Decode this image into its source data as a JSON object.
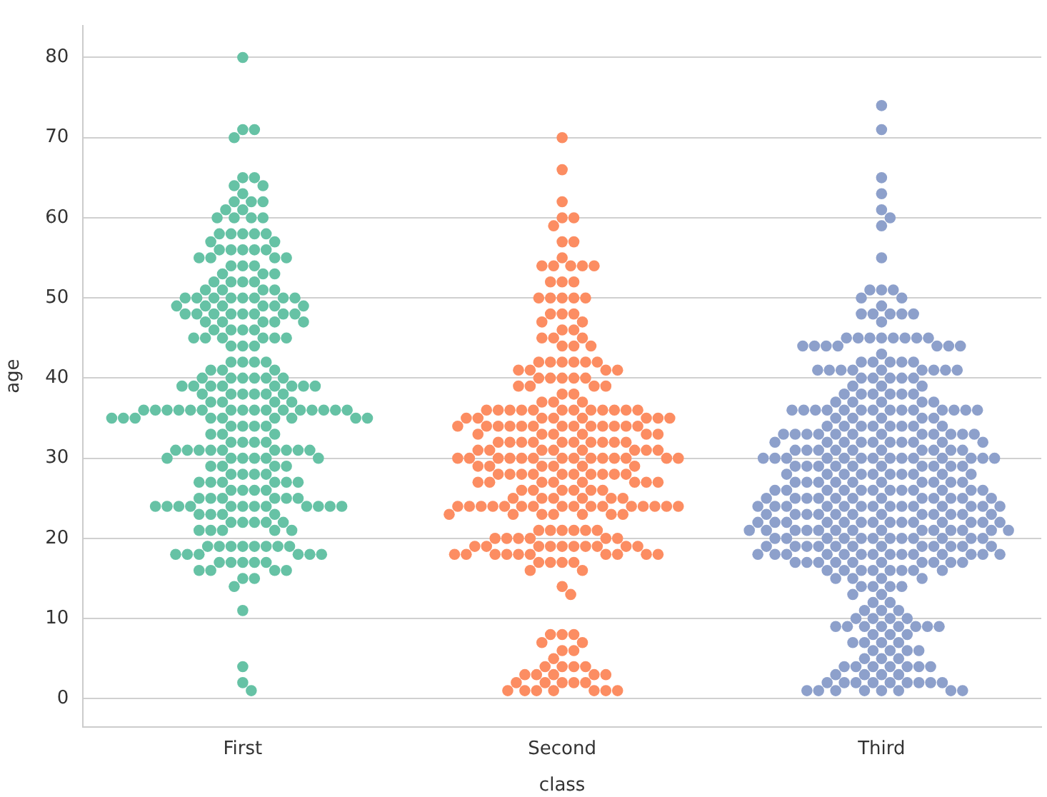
{
  "chart_data": {
    "type": "scatter",
    "xlabel": "class",
    "ylabel": "age",
    "categories": [
      "First",
      "Second",
      "Third"
    ],
    "ylim": [
      -3.5,
      84
    ],
    "yticks": [
      0,
      10,
      20,
      30,
      40,
      50,
      60,
      70,
      80
    ],
    "grid": "y",
    "legend": false,
    "marker": "circle",
    "series": [
      {
        "color": "#66c2a5",
        "x": [
          "First",
          "First",
          "First",
          "First",
          "First",
          "First",
          "First",
          "First",
          "First",
          "First",
          "First",
          "First",
          "First",
          "First",
          "First",
          "First",
          "First",
          "First",
          "First",
          "First",
          "First",
          "First",
          "First",
          "First",
          "First",
          "First",
          "First",
          "First",
          "First",
          "First",
          "First",
          "First",
          "First",
          "First",
          "First",
          "First",
          "First",
          "First",
          "First",
          "First",
          "First",
          "First",
          "First",
          "First",
          "First",
          "First",
          "First",
          "First",
          "First",
          "First",
          "First",
          "First",
          "First",
          "First",
          "First",
          "First",
          "First",
          "First",
          "First",
          "First",
          "First",
          "First",
          "First",
          "First",
          "First",
          "First",
          "First",
          "First",
          "First",
          "First",
          "First",
          "First",
          "First",
          "First",
          "First",
          "First",
          "First",
          "First",
          "First",
          "First",
          "First",
          "First",
          "First",
          "First",
          "First",
          "First",
          "First",
          "First",
          "First",
          "First",
          "First",
          "First",
          "First",
          "First",
          "First",
          "First",
          "First",
          "First",
          "First",
          "First",
          "First",
          "First",
          "First",
          "First",
          "First",
          "First",
          "First",
          "First",
          "First",
          "First",
          "First",
          "First",
          "First",
          "First",
          "First",
          "First",
          "First",
          "First",
          "First",
          "First",
          "First",
          "First",
          "First",
          "First",
          "First",
          "First",
          "First",
          "First",
          "First",
          "First",
          "First",
          "First",
          "First",
          "First",
          "First",
          "First",
          "First",
          "First",
          "First",
          "First",
          "First",
          "First",
          "First",
          "First",
          "First",
          "First",
          "First",
          "First",
          "First",
          "First",
          "First",
          "First",
          "First",
          "First",
          "First",
          "First",
          "First",
          "First",
          "First",
          "First",
          "First",
          "First",
          "First",
          "First",
          "First",
          "First",
          "First",
          "First",
          "First",
          "First",
          "First",
          "First",
          "First",
          "First",
          "First",
          "First",
          "First",
          "First",
          "First",
          "First",
          "First",
          "First",
          "First",
          "First",
          "First",
          "First",
          "First",
          "First",
          "First",
          "First",
          "First",
          "First",
          "First",
          "First",
          "First",
          "First",
          "First",
          "First",
          "First",
          "First",
          "First",
          "First",
          "First",
          "First",
          "First",
          "First",
          "First",
          "First",
          "First",
          "First",
          "First",
          "First",
          "First",
          "First",
          "First",
          "First",
          "First",
          "First",
          "First",
          "First",
          "First",
          "First",
          "First",
          "First",
          "First",
          "First",
          "First",
          "First",
          "First",
          "First",
          "First",
          "First",
          "First",
          "First",
          "First",
          "First",
          "First",
          "First",
          "First",
          "First",
          "First",
          "First",
          "First",
          "First",
          "First",
          "First",
          "First",
          "First",
          "First",
          "First"
        ],
        "values": [
          80,
          71,
          71,
          70,
          65,
          65,
          64,
          64,
          63,
          62,
          62,
          62,
          61,
          61,
          60,
          60,
          60,
          60,
          58,
          58,
          58,
          58,
          58,
          57,
          57,
          56,
          56,
          56,
          56,
          56,
          55,
          55,
          55,
          55,
          54,
          54,
          54,
          53,
          53,
          53,
          52,
          52,
          52,
          52,
          51,
          51,
          51,
          51,
          50,
          50,
          50,
          50,
          50,
          50,
          50,
          50,
          49,
          49,
          49,
          49,
          49,
          49,
          48,
          48,
          48,
          48,
          48,
          48,
          48,
          48,
          47,
          47,
          47,
          47,
          47,
          46,
          46,
          46,
          46,
          45,
          45,
          45,
          45,
          45,
          45,
          44,
          44,
          44,
          42,
          42,
          42,
          42,
          41,
          41,
          41,
          40,
          40,
          40,
          40,
          40,
          40,
          39,
          39,
          39,
          39,
          39,
          39,
          39,
          39,
          38,
          38,
          38,
          38,
          38,
          38,
          37,
          37,
          37,
          37,
          36,
          36,
          36,
          36,
          36,
          36,
          36,
          36,
          36,
          36,
          36,
          36,
          36,
          36,
          36,
          36,
          35,
          35,
          35,
          35,
          35,
          35,
          35,
          35,
          35,
          34,
          34,
          34,
          34,
          33,
          33,
          33,
          32,
          32,
          32,
          32,
          31,
          31,
          31,
          31,
          31,
          31,
          31,
          31,
          31,
          30,
          30,
          30,
          30,
          30,
          30,
          29,
          29,
          29,
          29,
          28,
          28,
          28,
          28,
          27,
          27,
          27,
          27,
          27,
          27,
          26,
          26,
          26,
          26,
          25,
          25,
          25,
          25,
          25,
          25,
          24,
          24,
          24,
          24,
          24,
          24,
          24,
          24,
          24,
          24,
          24,
          24,
          23,
          23,
          23,
          23,
          22,
          22,
          22,
          22,
          22,
          21,
          21,
          21,
          21,
          21,
          19,
          19,
          19,
          19,
          19,
          19,
          19,
          19,
          18,
          18,
          18,
          18,
          18,
          18,
          17,
          17,
          17,
          17,
          17,
          16,
          16,
          16,
          16,
          15,
          15,
          14,
          11,
          4,
          2,
          1
        ]
      },
      {
        "color": "#fc8d62",
        "x": [
          "Second",
          "Second",
          "Second",
          "Second",
          "Second",
          "Second",
          "Second",
          "Second",
          "Second",
          "Second",
          "Second",
          "Second",
          "Second",
          "Second",
          "Second",
          "Second",
          "Second",
          "Second",
          "Second",
          "Second",
          "Second",
          "Second",
          "Second",
          "Second",
          "Second",
          "Second",
          "Second",
          "Second",
          "Second",
          "Second",
          "Second",
          "Second",
          "Second",
          "Second",
          "Second",
          "Second",
          "Second",
          "Second",
          "Second",
          "Second",
          "Second",
          "Second",
          "Second",
          "Second",
          "Second",
          "Second",
          "Second",
          "Second",
          "Second",
          "Second",
          "Second",
          "Second",
          "Second",
          "Second",
          "Second",
          "Second",
          "Second",
          "Second",
          "Second",
          "Second",
          "Second",
          "Second",
          "Second",
          "Second",
          "Second",
          "Second",
          "Second",
          "Second",
          "Second",
          "Second",
          "Second",
          "Second",
          "Second",
          "Second",
          "Second",
          "Second",
          "Second",
          "Second",
          "Second",
          "Second",
          "Second",
          "Second",
          "Second",
          "Second",
          "Second",
          "Second",
          "Second",
          "Second",
          "Second",
          "Second",
          "Second",
          "Second",
          "Second",
          "Second",
          "Second",
          "Second",
          "Second",
          "Second",
          "Second",
          "Second",
          "Second",
          "Second",
          "Second",
          "Second",
          "Second",
          "Second",
          "Second",
          "Second",
          "Second",
          "Second",
          "Second",
          "Second",
          "Second",
          "Second",
          "Second",
          "Second",
          "Second",
          "Second",
          "Second",
          "Second",
          "Second",
          "Second",
          "Second",
          "Second",
          "Second",
          "Second",
          "Second",
          "Second",
          "Second",
          "Second",
          "Second",
          "Second",
          "Second",
          "Second",
          "Second",
          "Second",
          "Second",
          "Second",
          "Second",
          "Second",
          "Second",
          "Second",
          "Second",
          "Second",
          "Second",
          "Second",
          "Second",
          "Second",
          "Second",
          "Second",
          "Second",
          "Second",
          "Second",
          "Second",
          "Second",
          "Second",
          "Second",
          "Second",
          "Second",
          "Second",
          "Second",
          "Second",
          "Second",
          "Second",
          "Second",
          "Second",
          "Second",
          "Second",
          "Second",
          "Second",
          "Second",
          "Second",
          "Second",
          "Second",
          "Second",
          "Second",
          "Second",
          "Second",
          "Second",
          "Second",
          "Second",
          "Second",
          "Second",
          "Second",
          "Second",
          "Second",
          "Second",
          "Second",
          "Second",
          "Second",
          "Second",
          "Second",
          "Second",
          "Second",
          "Second",
          "Second",
          "Second",
          "Second",
          "Second",
          "Second",
          "Second",
          "Second",
          "Second",
          "Second",
          "Second",
          "Second",
          "Second",
          "Second",
          "Second",
          "Second",
          "Second",
          "Second",
          "Second",
          "Second",
          "Second",
          "Second",
          "Second",
          "Second",
          "Second",
          "Second",
          "Second",
          "Second",
          "Second",
          "Second",
          "Second",
          "Second",
          "Second",
          "Second",
          "Second",
          "Second",
          "Second",
          "Second",
          "Second",
          "Second",
          "Second",
          "Second",
          "Second",
          "Second",
          "Second",
          "Second",
          "Second",
          "Second",
          "Second",
          "Second",
          "Second",
          "Second",
          "Second",
          "Second",
          "Second",
          "Second",
          "Second",
          "Second",
          "Second",
          "Second",
          "Second",
          "Second",
          "Second",
          "Second"
        ],
        "values": [
          70,
          66,
          62,
          60,
          60,
          59,
          57,
          57,
          55,
          54,
          54,
          54,
          54,
          54,
          52,
          52,
          52,
          50,
          50,
          50,
          50,
          50,
          48,
          48,
          48,
          47,
          47,
          46,
          46,
          45,
          45,
          45,
          44,
          44,
          44,
          42,
          42,
          42,
          42,
          42,
          42,
          41,
          41,
          41,
          41,
          40,
          40,
          40,
          40,
          40,
          39,
          39,
          39,
          39,
          38,
          38,
          37,
          37,
          37,
          36,
          36,
          36,
          36,
          36,
          36,
          36,
          36,
          36,
          36,
          36,
          36,
          35,
          35,
          35,
          35,
          35,
          35,
          35,
          35,
          34,
          34,
          34,
          34,
          34,
          34,
          34,
          34,
          34,
          34,
          34,
          34,
          34,
          33,
          33,
          33,
          33,
          33,
          33,
          32,
          32,
          32,
          32,
          32,
          32,
          32,
          32,
          32,
          32,
          31,
          31,
          31,
          31,
          31,
          31,
          31,
          31,
          30,
          30,
          30,
          30,
          30,
          30,
          30,
          30,
          30,
          30,
          30,
          30,
          30,
          30,
          29,
          29,
          29,
          29,
          29,
          29,
          28,
          28,
          28,
          28,
          28,
          28,
          28,
          28,
          28,
          28,
          27,
          27,
          27,
          27,
          27,
          27,
          27,
          27,
          26,
          26,
          26,
          26,
          26,
          26,
          25,
          25,
          25,
          25,
          25,
          25,
          24,
          24,
          24,
          24,
          24,
          24,
          24,
          24,
          24,
          24,
          24,
          24,
          24,
          24,
          24,
          24,
          23,
          23,
          23,
          23,
          23,
          23,
          23,
          21,
          21,
          21,
          21,
          21,
          21,
          20,
          20,
          20,
          20,
          20,
          20,
          19,
          19,
          19,
          19,
          19,
          19,
          19,
          19,
          19,
          19,
          18,
          18,
          18,
          18,
          18,
          18,
          18,
          18,
          18,
          18,
          17,
          17,
          17,
          17,
          16,
          16,
          14,
          13,
          8,
          8,
          8,
          7,
          7,
          6,
          6,
          5,
          4,
          4,
          4,
          4,
          3,
          3,
          3,
          3,
          3,
          2,
          2,
          2,
          2,
          2,
          1,
          1,
          1,
          1,
          1,
          1,
          1
        ]
      },
      {
        "color": "#8da0cb",
        "x": [
          "Third",
          "Third",
          "Third",
          "Third",
          "Third",
          "Third",
          "Third",
          "Third",
          "Third",
          "Third",
          "Third",
          "Third",
          "Third",
          "Third",
          "Third",
          "Third",
          "Third",
          "Third",
          "Third",
          "Third",
          "Third",
          "Third",
          "Third",
          "Third",
          "Third",
          "Third",
          "Third",
          "Third",
          "Third",
          "Third",
          "Third",
          "Third",
          "Third",
          "Third",
          "Third",
          "Third",
          "Third",
          "Third",
          "Third",
          "Third",
          "Third",
          "Third",
          "Third",
          "Third",
          "Third",
          "Third",
          "Third",
          "Third",
          "Third",
          "Third",
          "Third",
          "Third",
          "Third",
          "Third",
          "Third",
          "Third",
          "Third",
          "Third",
          "Third",
          "Third",
          "Third",
          "Third",
          "Third",
          "Third",
          "Third",
          "Third",
          "Third",
          "Third",
          "Third",
          "Third",
          "Third",
          "Third",
          "Third",
          "Third",
          "Third",
          "Third",
          "Third",
          "Third",
          "Third",
          "Third",
          "Third",
          "Third",
          "Third",
          "Third",
          "Third",
          "Third",
          "Third",
          "Third",
          "Third",
          "Third",
          "Third",
          "Third",
          "Third",
          "Third",
          "Third",
          "Third",
          "Third",
          "Third",
          "Third",
          "Third",
          "Third",
          "Third",
          "Third",
          "Third",
          "Third",
          "Third",
          "Third",
          "Third",
          "Third",
          "Third",
          "Third",
          "Third",
          "Third",
          "Third",
          "Third",
          "Third",
          "Third",
          "Third",
          "Third",
          "Third",
          "Third",
          "Third",
          "Third",
          "Third",
          "Third",
          "Third",
          "Third",
          "Third",
          "Third",
          "Third",
          "Third",
          "Third",
          "Third",
          "Third",
          "Third",
          "Third",
          "Third",
          "Third",
          "Third",
          "Third",
          "Third",
          "Third",
          "Third",
          "Third",
          "Third",
          "Third",
          "Third",
          "Third",
          "Third",
          "Third",
          "Third",
          "Third",
          "Third",
          "Third",
          "Third",
          "Third",
          "Third",
          "Third",
          "Third",
          "Third",
          "Third",
          "Third",
          "Third",
          "Third",
          "Third",
          "Third",
          "Third",
          "Third",
          "Third",
          "Third",
          "Third",
          "Third",
          "Third",
          "Third",
          "Third",
          "Third",
          "Third",
          "Third",
          "Third",
          "Third",
          "Third",
          "Third",
          "Third",
          "Third",
          "Third",
          "Third",
          "Third",
          "Third",
          "Third",
          "Third",
          "Third",
          "Third",
          "Third",
          "Third",
          "Third",
          "Third",
          "Third",
          "Third",
          "Third",
          "Third",
          "Third",
          "Third",
          "Third",
          "Third",
          "Third",
          "Third",
          "Third",
          "Third",
          "Third",
          "Third",
          "Third",
          "Third",
          "Third",
          "Third",
          "Third",
          "Third",
          "Third",
          "Third",
          "Third",
          "Third",
          "Third",
          "Third",
          "Third",
          "Third",
          "Third",
          "Third",
          "Third",
          "Third",
          "Third",
          "Third",
          "Third",
          "Third",
          "Third",
          "Third",
          "Third",
          "Third",
          "Third",
          "Third",
          "Third",
          "Third",
          "Third",
          "Third",
          "Third",
          "Third",
          "Third",
          "Third",
          "Third",
          "Third",
          "Third",
          "Third",
          "Third",
          "Third",
          "Third",
          "Third",
          "Third",
          "Third",
          "Third",
          "Third",
          "Third",
          "Third",
          "Third",
          "Third",
          "Third",
          "Third",
          "Third",
          "Third",
          "Third",
          "Third",
          "Third",
          "Third",
          "Third",
          "Third",
          "Third",
          "Third",
          "Third",
          "Third",
          "Third",
          "Third",
          "Third",
          "Third",
          "Third",
          "Third",
          "Third",
          "Third",
          "Third",
          "Third",
          "Third",
          "Third",
          "Third",
          "Third",
          "Third",
          "Third",
          "Third",
          "Third",
          "Third",
          "Third",
          "Third",
          "Third",
          "Third",
          "Third",
          "Third",
          "Third",
          "Third",
          "Third",
          "Third",
          "Third",
          "Third",
          "Third",
          "Third",
          "Third",
          "Third",
          "Third",
          "Third",
          "Third",
          "Third",
          "Third",
          "Third",
          "Third",
          "Third",
          "Third",
          "Third",
          "Third",
          "Third",
          "Third",
          "Third",
          "Third",
          "Third",
          "Third",
          "Third",
          "Third",
          "Third",
          "Third",
          "Third",
          "Third",
          "Third",
          "Third",
          "Third",
          "Third",
          "Third",
          "Third",
          "Third",
          "Third",
          "Third",
          "Third",
          "Third",
          "Third",
          "Third",
          "Third",
          "Third",
          "Third",
          "Third",
          "Third",
          "Third",
          "Third",
          "Third",
          "Third",
          "Third",
          "Third",
          "Third",
          "Third",
          "Third",
          "Third",
          "Third",
          "Third",
          "Third",
          "Third",
          "Third",
          "Third",
          "Third",
          "Third",
          "Third",
          "Third",
          "Third",
          "Third",
          "Third"
        ],
        "values": [
          74,
          71,
          65,
          63,
          61,
          60,
          59,
          55,
          51,
          51,
          51,
          50,
          50,
          49,
          48,
          48,
          48,
          48,
          48,
          47,
          45,
          45,
          45,
          45,
          45,
          45,
          45,
          45,
          44,
          44,
          44,
          44,
          44,
          44,
          44,
          43,
          42,
          42,
          42,
          42,
          42,
          41,
          41,
          41,
          41,
          41,
          41,
          41,
          41,
          41,
          40,
          40,
          40,
          40,
          40,
          39,
          39,
          39,
          38,
          38,
          38,
          38,
          38,
          38,
          37,
          37,
          37,
          37,
          37,
          36,
          36,
          36,
          36,
          36,
          36,
          36,
          36,
          36,
          36,
          36,
          36,
          36,
          36,
          35,
          35,
          35,
          35,
          35,
          34,
          34,
          34,
          34,
          34,
          34,
          34,
          34,
          33,
          33,
          33,
          33,
          33,
          33,
          33,
          33,
          33,
          33,
          33,
          33,
          32,
          32,
          32,
          32,
          32,
          32,
          32,
          32,
          32,
          32,
          31,
          31,
          31,
          31,
          31,
          31,
          31,
          31,
          31,
          31,
          30,
          30,
          30,
          30,
          30,
          30,
          30,
          30,
          30,
          30,
          30,
          30,
          30,
          30,
          29,
          29,
          29,
          29,
          29,
          29,
          29,
          29,
          29,
          29,
          28,
          28,
          28,
          28,
          28,
          28,
          28,
          28,
          28,
          28,
          27,
          27,
          27,
          27,
          27,
          27,
          27,
          27,
          27,
          27,
          26,
          26,
          26,
          26,
          26,
          26,
          26,
          26,
          26,
          26,
          26,
          26,
          25,
          25,
          25,
          25,
          25,
          25,
          25,
          25,
          25,
          25,
          25,
          25,
          24,
          24,
          24,
          24,
          24,
          24,
          24,
          24,
          24,
          24,
          24,
          24,
          24,
          24,
          23,
          23,
          23,
          23,
          23,
          23,
          23,
          23,
          23,
          23,
          23,
          23,
          22,
          22,
          22,
          22,
          22,
          22,
          22,
          22,
          22,
          22,
          22,
          22,
          22,
          22,
          21,
          21,
          21,
          21,
          21,
          21,
          21,
          21,
          21,
          21,
          21,
          21,
          21,
          21,
          20,
          20,
          20,
          20,
          20,
          20,
          20,
          20,
          20,
          20,
          20,
          20,
          19,
          19,
          19,
          19,
          19,
          19,
          19,
          19,
          19,
          19,
          19,
          19,
          18,
          18,
          18,
          18,
          18,
          18,
          18,
          18,
          18,
          18,
          18,
          18,
          18,
          18,
          17,
          17,
          17,
          17,
          17,
          17,
          17,
          17,
          17,
          17,
          16,
          16,
          16,
          16,
          16,
          16,
          16,
          16,
          15,
          15,
          15,
          15,
          14,
          14,
          14,
          14,
          13,
          13,
          12,
          12,
          11,
          11,
          11,
          10,
          10,
          10,
          10,
          9,
          9,
          9,
          9,
          9,
          9,
          9,
          9,
          8,
          8,
          8,
          7,
          7,
          7,
          7,
          6,
          6,
          6,
          6,
          5,
          5,
          5,
          4,
          4,
          4,
          4,
          4,
          4,
          4,
          3,
          3,
          3,
          3,
          2,
          2,
          2,
          2,
          2,
          2,
          2,
          2,
          2,
          1,
          1,
          1,
          1,
          1,
          1,
          1,
          1
        ]
      }
    ]
  }
}
